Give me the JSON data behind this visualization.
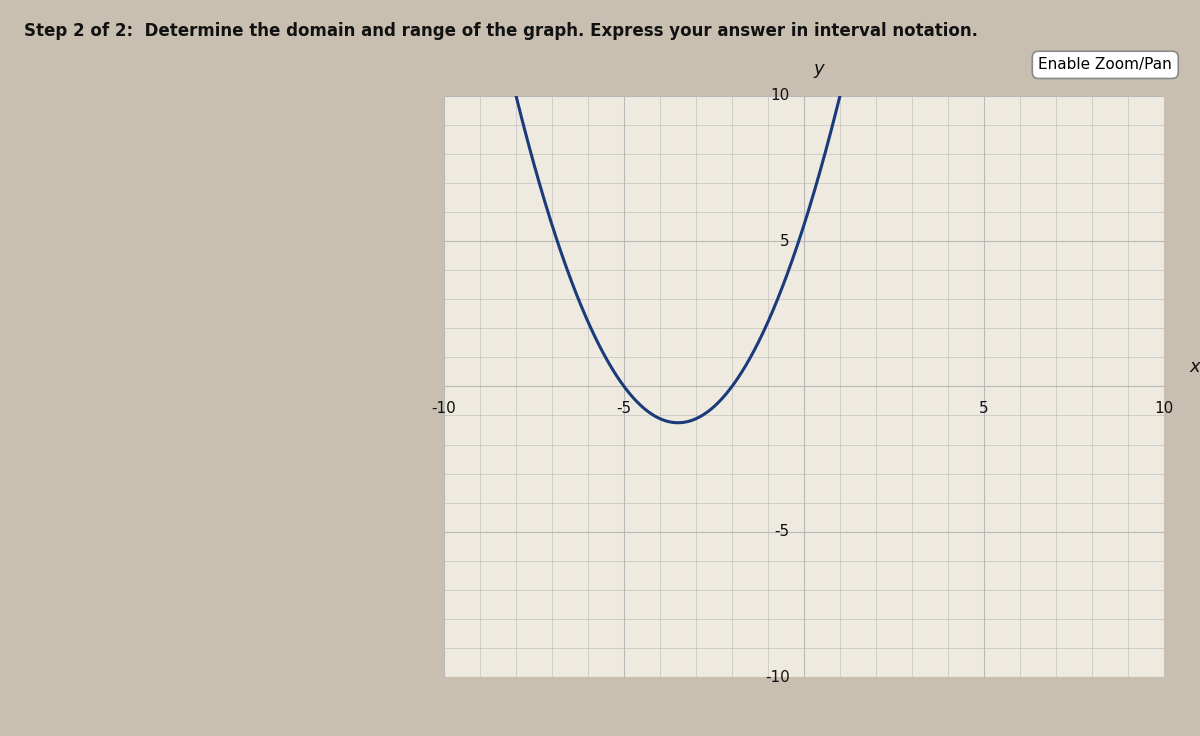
{
  "title": "Step 2 of 2:  Determine the domain and range of the graph. Express your answer in interval notation.",
  "enable_zoom_pan_label": "Enable Zoom/Pan",
  "xlim": [
    -10,
    10
  ],
  "ylim": [
    -10,
    10
  ],
  "curve_color": "#1a3a7a",
  "curve_linewidth": 2.2,
  "grid_color": "#b8b8b8",
  "axis_color": "#111111",
  "fig_bg_color": "#c8bfb0",
  "plot_bg_color": "#eeeae0",
  "panel_bg_color": "#e8e4d8",
  "vertex_x": -3.5,
  "vertex_y": -1.25,
  "x_label": "x",
  "y_label": "y",
  "tick_fontsize": 11,
  "label_fontsize": 13,
  "title_fontsize": 12
}
